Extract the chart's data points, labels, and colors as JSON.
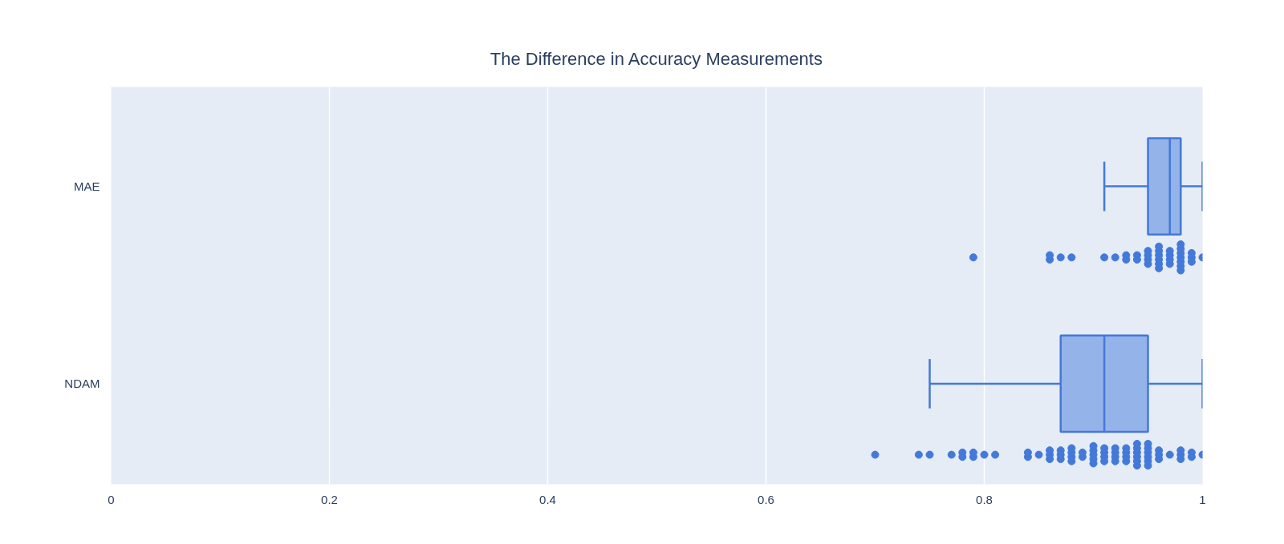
{
  "chart_data": {
    "type": "box",
    "orientation": "horizontal",
    "title": "The Difference in Accuracy Measurements",
    "categories": [
      "MAE",
      "NDAM"
    ],
    "series": [
      {
        "color": "#4379d9",
        "boxes": [
          {
            "low": 0.91,
            "q1": 0.95,
            "median": 0.97,
            "q3": 0.98,
            "high": 1.0
          },
          {
            "low": 0.75,
            "q1": 0.87,
            "median": 0.91,
            "q3": 0.95,
            "high": 1.0
          }
        ]
      },
      {
        "type": "scatter",
        "color": "#4379d9",
        "x": [
          "MAE",
          "MAE",
          "MAE",
          "MAE",
          "MAE",
          "MAE",
          "MAE",
          "MAE",
          "MAE",
          "MAE",
          "MAE",
          "MAE",
          "MAE",
          "MAE",
          "MAE",
          "MAE",
          "MAE",
          "MAE",
          "MAE",
          "MAE",
          "MAE",
          "MAE",
          "MAE",
          "MAE",
          "MAE",
          "MAE",
          "MAE",
          "MAE",
          "MAE",
          "MAE",
          "MAE",
          "MAE",
          "MAE",
          "MAE",
          "MAE",
          "MAE"
        ],
        "values": [
          0.79,
          0.86,
          0.86,
          0.87,
          0.88,
          0.91,
          0.92,
          0.93,
          0.93,
          0.94,
          0.94,
          0.95,
          0.95,
          0.95,
          0.95,
          0.96,
          0.96,
          0.96,
          0.96,
          0.96,
          0.96,
          0.97,
          0.97,
          0.97,
          0.97,
          0.98,
          0.98,
          0.98,
          0.98,
          0.98,
          0.98,
          0.98,
          0.99,
          0.99,
          0.99,
          1.0
        ]
      },
      {
        "type": "scatter",
        "color": "#4379d9",
        "x": [
          "NDAM",
          "NDAM",
          "NDAM",
          "NDAM",
          "NDAM",
          "NDAM",
          "NDAM",
          "NDAM",
          "NDAM",
          "NDAM",
          "NDAM",
          "NDAM",
          "NDAM",
          "NDAM",
          "NDAM",
          "NDAM",
          "NDAM",
          "NDAM",
          "NDAM",
          "NDAM",
          "NDAM",
          "NDAM",
          "NDAM",
          "NDAM",
          "NDAM",
          "NDAM",
          "NDAM",
          "NDAM",
          "NDAM",
          "NDAM",
          "NDAM",
          "NDAM",
          "NDAM",
          "NDAM",
          "NDAM",
          "NDAM",
          "NDAM",
          "NDAM",
          "NDAM",
          "NDAM",
          "NDAM",
          "NDAM",
          "NDAM",
          "NDAM",
          "NDAM",
          "NDAM",
          "NDAM",
          "NDAM",
          "NDAM",
          "NDAM",
          "NDAM",
          "NDAM",
          "NDAM",
          "NDAM",
          "NDAM",
          "NDAM",
          "NDAM",
          "NDAM",
          "NDAM",
          "NDAM",
          "NDAM",
          "NDAM",
          "NDAM",
          "NDAM"
        ],
        "values": [
          0.7,
          0.74,
          0.75,
          0.77,
          0.78,
          0.78,
          0.79,
          0.79,
          0.8,
          0.81,
          0.84,
          0.84,
          0.85,
          0.86,
          0.86,
          0.86,
          0.87,
          0.87,
          0.87,
          0.88,
          0.88,
          0.88,
          0.88,
          0.89,
          0.89,
          0.9,
          0.9,
          0.9,
          0.9,
          0.9,
          0.91,
          0.91,
          0.91,
          0.91,
          0.92,
          0.92,
          0.92,
          0.92,
          0.93,
          0.93,
          0.93,
          0.93,
          0.94,
          0.94,
          0.94,
          0.94,
          0.94,
          0.94,
          0.95,
          0.95,
          0.95,
          0.95,
          0.95,
          0.95,
          0.96,
          0.96,
          0.96,
          0.97,
          0.98,
          0.98,
          0.98,
          0.99,
          0.99,
          1.0
        ]
      }
    ],
    "xlim": [
      0,
      1
    ],
    "xticks": [
      0,
      0.2,
      0.4,
      0.6,
      0.8,
      1
    ],
    "grid": "x",
    "marker": "circle"
  }
}
